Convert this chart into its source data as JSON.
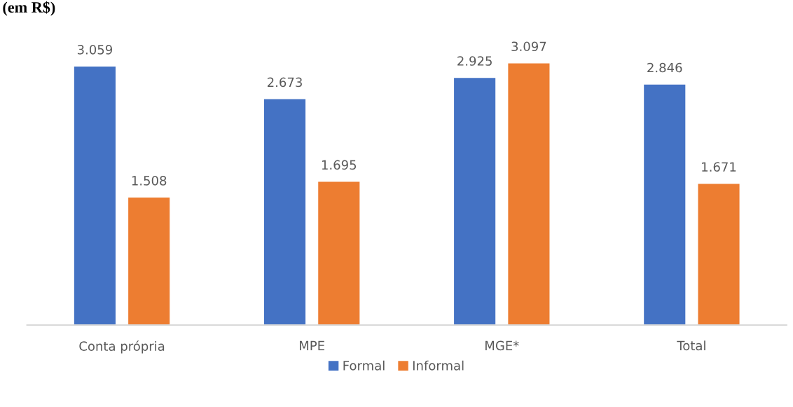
{
  "chart_data": {
    "type": "bar",
    "title": "(em R$)",
    "categories": [
      "Conta própria",
      "MPE",
      "MGE*",
      "Total"
    ],
    "series": [
      {
        "name": "Formal",
        "color": "#4472c4",
        "values": [
          3059,
          2673,
          2925,
          2846
        ],
        "value_labels": [
          "3.059",
          "2.673",
          "2.925",
          "2.846"
        ]
      },
      {
        "name": "Informal",
        "color": "#ed7d31",
        "values": [
          1508,
          1695,
          3097,
          1671
        ],
        "value_labels": [
          "1.508",
          "1.695",
          "3.097",
          "1.671"
        ]
      }
    ],
    "tick_labels": "x",
    "legend": "bottom"
  }
}
